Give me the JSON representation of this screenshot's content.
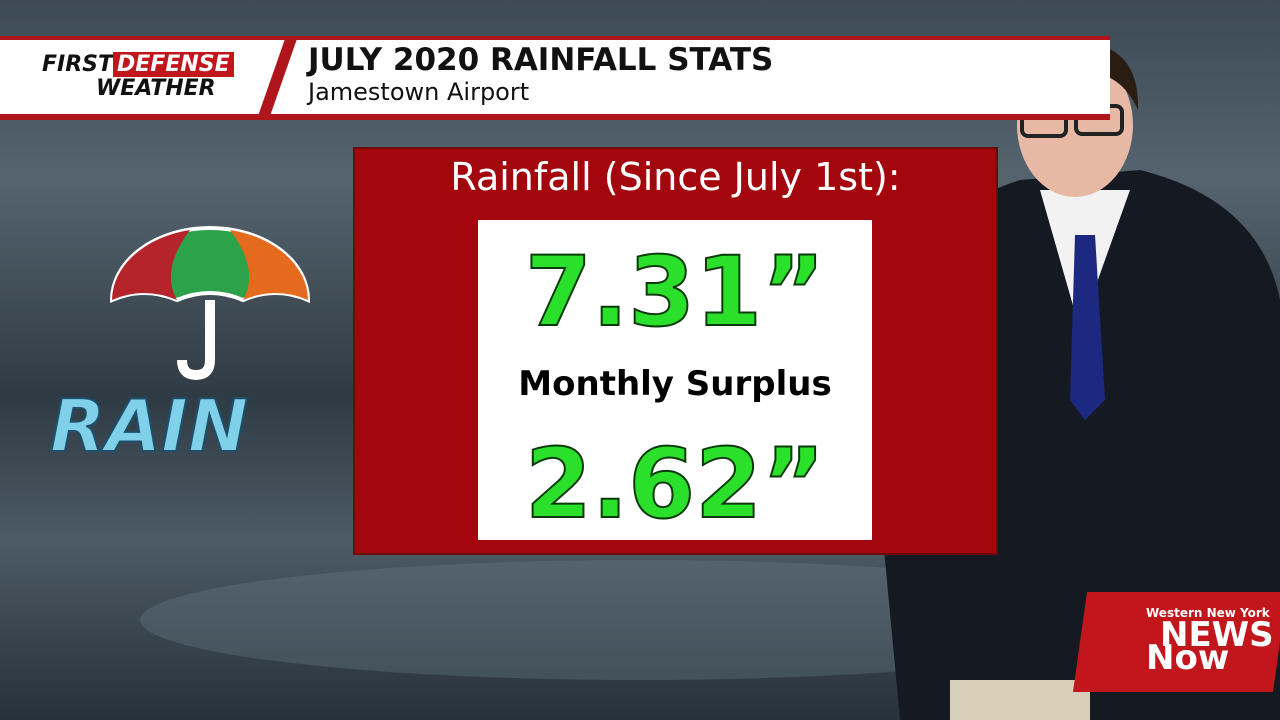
{
  "header": {
    "brand_first": "FIRST",
    "brand_defense": "DEFENSE",
    "brand_weather": "WEATHER",
    "title": "JULY 2020 RAINFALL STATS",
    "subtitle": "Jamestown Airport"
  },
  "panel": {
    "title": "Rainfall (Since July 1st):",
    "rainfall": "7.31”",
    "surplus_label": "Monthly Surplus",
    "surplus": "2.62”"
  },
  "icon": {
    "label": "RAIN"
  },
  "logo": {
    "region": "Western New York",
    "news": "NEWS",
    "now": "Now"
  }
}
